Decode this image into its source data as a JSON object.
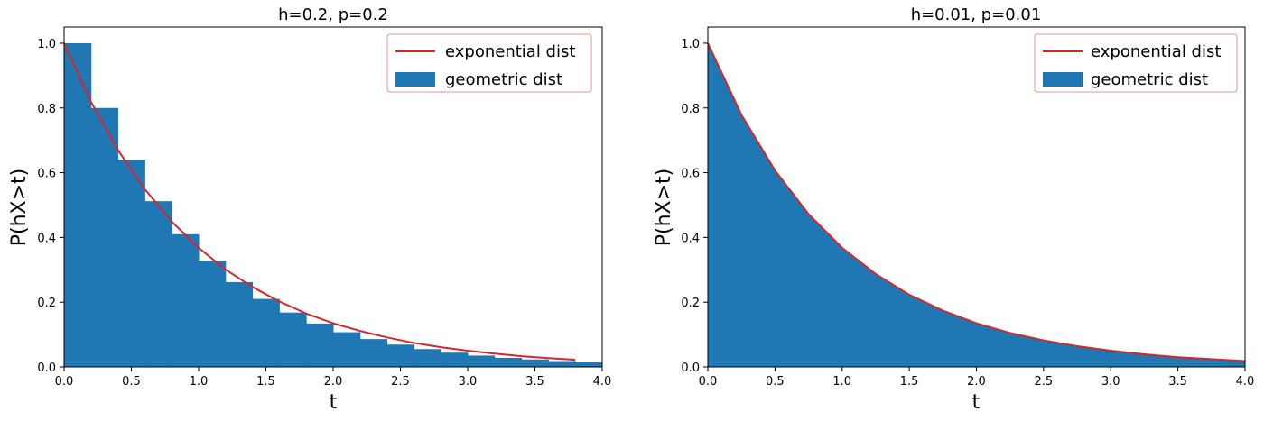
{
  "chart_data": [
    {
      "type": "bar",
      "title": "h=0.2, p=0.2",
      "xlabel": "t",
      "ylabel": "P(hX>t)",
      "xlim": [
        0.0,
        4.0
      ],
      "ylim": [
        0.0,
        1.05
      ],
      "xticks": [
        "0.0",
        "0.5",
        "1.0",
        "1.5",
        "2.0",
        "2.5",
        "3.0",
        "3.5",
        "4.0"
      ],
      "yticks": [
        "0.0",
        "0.2",
        "0.4",
        "0.6",
        "0.8",
        "1.0"
      ],
      "grid": false,
      "legend_position": "upper-right",
      "series": [
        {
          "name": "exponential dist",
          "kind": "line",
          "color": "#d62728",
          "x": [
            0.0,
            0.2,
            0.4,
            0.6,
            0.8,
            1.0,
            1.2,
            1.4,
            1.6,
            1.8,
            2.0,
            2.2,
            2.4,
            2.6,
            2.8,
            3.0,
            3.2,
            3.4,
            3.6,
            3.8
          ],
          "y": [
            1.0,
            0.819,
            0.67,
            0.549,
            0.449,
            0.368,
            0.301,
            0.247,
            0.202,
            0.165,
            0.135,
            0.111,
            0.091,
            0.074,
            0.061,
            0.05,
            0.041,
            0.033,
            0.027,
            0.022
          ]
        },
        {
          "name": "geometric dist",
          "kind": "bar",
          "color": "#1f77b4",
          "bar_width": 0.2,
          "x": [
            0.0,
            0.2,
            0.4,
            0.6,
            0.8,
            1.0,
            1.2,
            1.4,
            1.6,
            1.8,
            2.0,
            2.2,
            2.4,
            2.6,
            2.8,
            3.0,
            3.2,
            3.4,
            3.6,
            3.8
          ],
          "y": [
            1.0,
            0.8,
            0.64,
            0.512,
            0.41,
            0.328,
            0.262,
            0.21,
            0.168,
            0.134,
            0.107,
            0.086,
            0.069,
            0.055,
            0.044,
            0.035,
            0.028,
            0.023,
            0.018,
            0.014
          ]
        }
      ]
    },
    {
      "type": "area",
      "title": "h=0.01, p=0.01",
      "xlabel": "t",
      "ylabel": "P(hX>t)",
      "xlim": [
        0.0,
        4.0
      ],
      "ylim": [
        0.0,
        1.05
      ],
      "xticks": [
        "0.0",
        "0.5",
        "1.0",
        "1.5",
        "2.0",
        "2.5",
        "3.0",
        "3.5",
        "4.0"
      ],
      "yticks": [
        "0.0",
        "0.2",
        "0.4",
        "0.6",
        "0.8",
        "1.0"
      ],
      "grid": false,
      "legend_position": "upper-right",
      "series": [
        {
          "name": "exponential dist",
          "kind": "line",
          "color": "#d62728",
          "x": [
            0.0,
            0.25,
            0.5,
            0.75,
            1.0,
            1.25,
            1.5,
            1.75,
            2.0,
            2.25,
            2.5,
            2.75,
            3.0,
            3.25,
            3.5,
            3.75,
            4.0
          ],
          "y": [
            1.0,
            0.779,
            0.607,
            0.472,
            0.368,
            0.287,
            0.223,
            0.174,
            0.135,
            0.105,
            0.082,
            0.064,
            0.05,
            0.039,
            0.03,
            0.024,
            0.018
          ]
        },
        {
          "name": "geometric dist",
          "kind": "area",
          "color": "#1f77b4",
          "x": [
            0.0,
            0.25,
            0.5,
            0.75,
            1.0,
            1.25,
            1.5,
            1.75,
            2.0,
            2.25,
            2.5,
            2.75,
            3.0,
            3.25,
            3.5,
            3.75,
            4.0
          ],
          "y": [
            1.0,
            0.778,
            0.605,
            0.471,
            0.366,
            0.285,
            0.221,
            0.172,
            0.134,
            0.104,
            0.081,
            0.063,
            0.049,
            0.038,
            0.03,
            0.023,
            0.018
          ]
        }
      ]
    }
  ]
}
